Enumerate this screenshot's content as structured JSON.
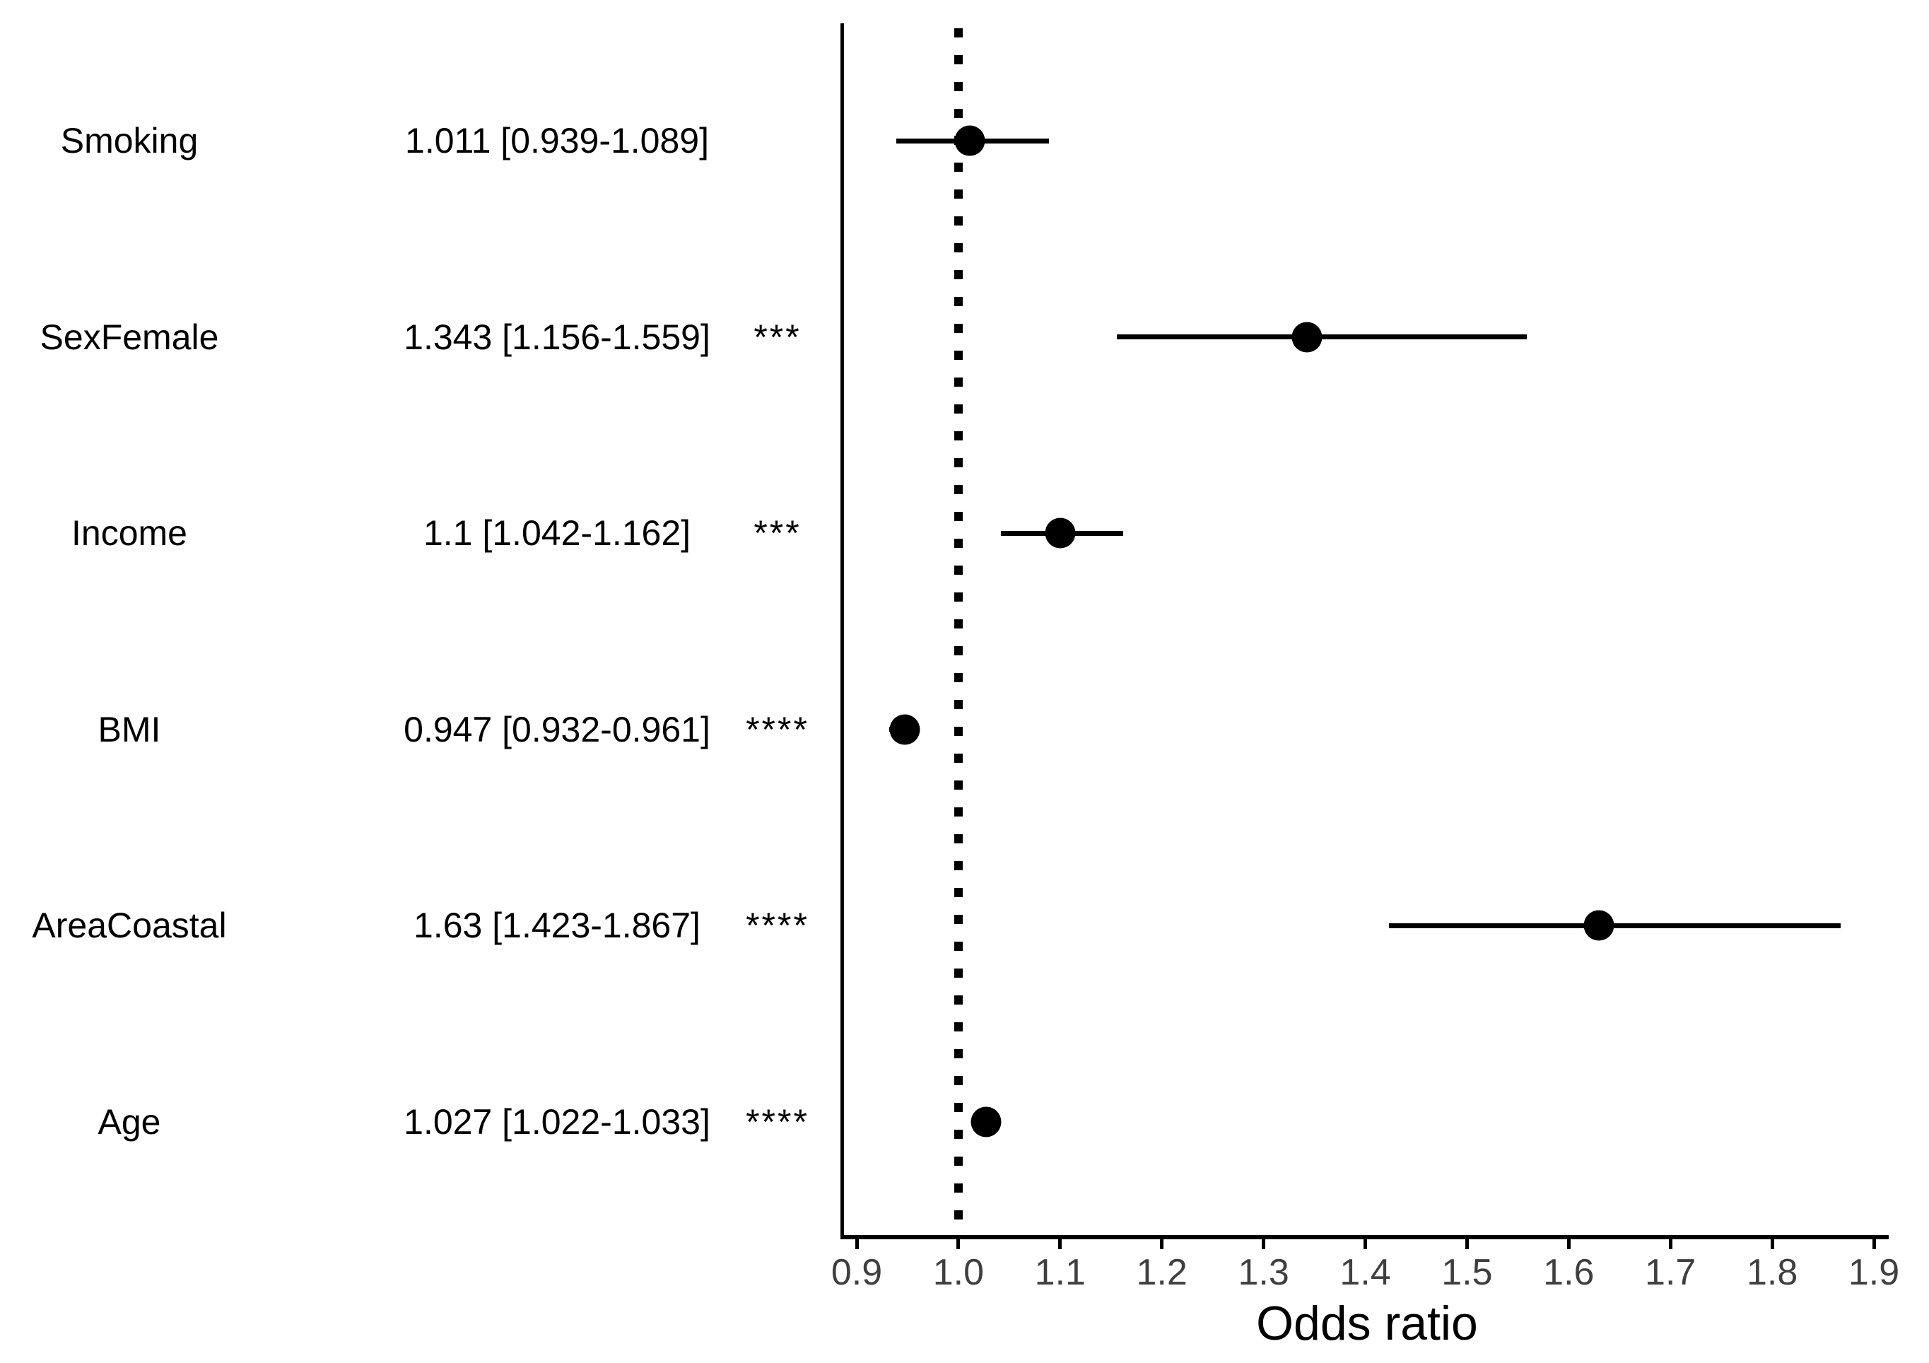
{
  "chart_data": {
    "type": "scatter",
    "subtype": "forest-plot",
    "title": "",
    "xlabel": "Odds ratio",
    "ylabel": "",
    "xlim": [
      0.9,
      1.9
    ],
    "x_ticks": [
      "0.9",
      "1.0",
      "1.1",
      "1.2",
      "1.3",
      "1.4",
      "1.5",
      "1.6",
      "1.7",
      "1.8",
      "1.9"
    ],
    "x_tick_values": [
      0.9,
      1.0,
      1.1,
      1.2,
      1.3,
      1.4,
      1.5,
      1.6,
      1.7,
      1.8,
      1.9
    ],
    "reference_line_x": 1.0,
    "grid": false,
    "legend": false,
    "rows": [
      {
        "label": "Smoking",
        "display": "1.011 [0.939-1.089]",
        "stars": "",
        "or": 1.011,
        "ci_low": 0.939,
        "ci_high": 1.089
      },
      {
        "label": "SexFemale",
        "display": "1.343 [1.156-1.559]",
        "stars": "***",
        "or": 1.343,
        "ci_low": 1.156,
        "ci_high": 1.559
      },
      {
        "label": "Income",
        "display": "1.1 [1.042-1.162]",
        "stars": "***",
        "or": 1.1,
        "ci_low": 1.042,
        "ci_high": 1.162
      },
      {
        "label": "BMI",
        "display": "0.947 [0.932-0.961]",
        "stars": "****",
        "or": 0.947,
        "ci_low": 0.932,
        "ci_high": 0.961
      },
      {
        "label": "AreaCoastal",
        "display": "1.63 [1.423-1.867]",
        "stars": "****",
        "or": 1.63,
        "ci_low": 1.423,
        "ci_high": 1.867
      },
      {
        "label": "Age",
        "display": "1.027 [1.022-1.033]",
        "stars": "****",
        "or": 1.027,
        "ci_low": 1.022,
        "ci_high": 1.033
      }
    ],
    "colors": {
      "point": "#000000",
      "ci_line": "#000000",
      "axis": "#000000",
      "reference_line": "#000000",
      "tick_label": "#3f3f3f",
      "text": "#000000",
      "background": "#ffffff"
    }
  }
}
